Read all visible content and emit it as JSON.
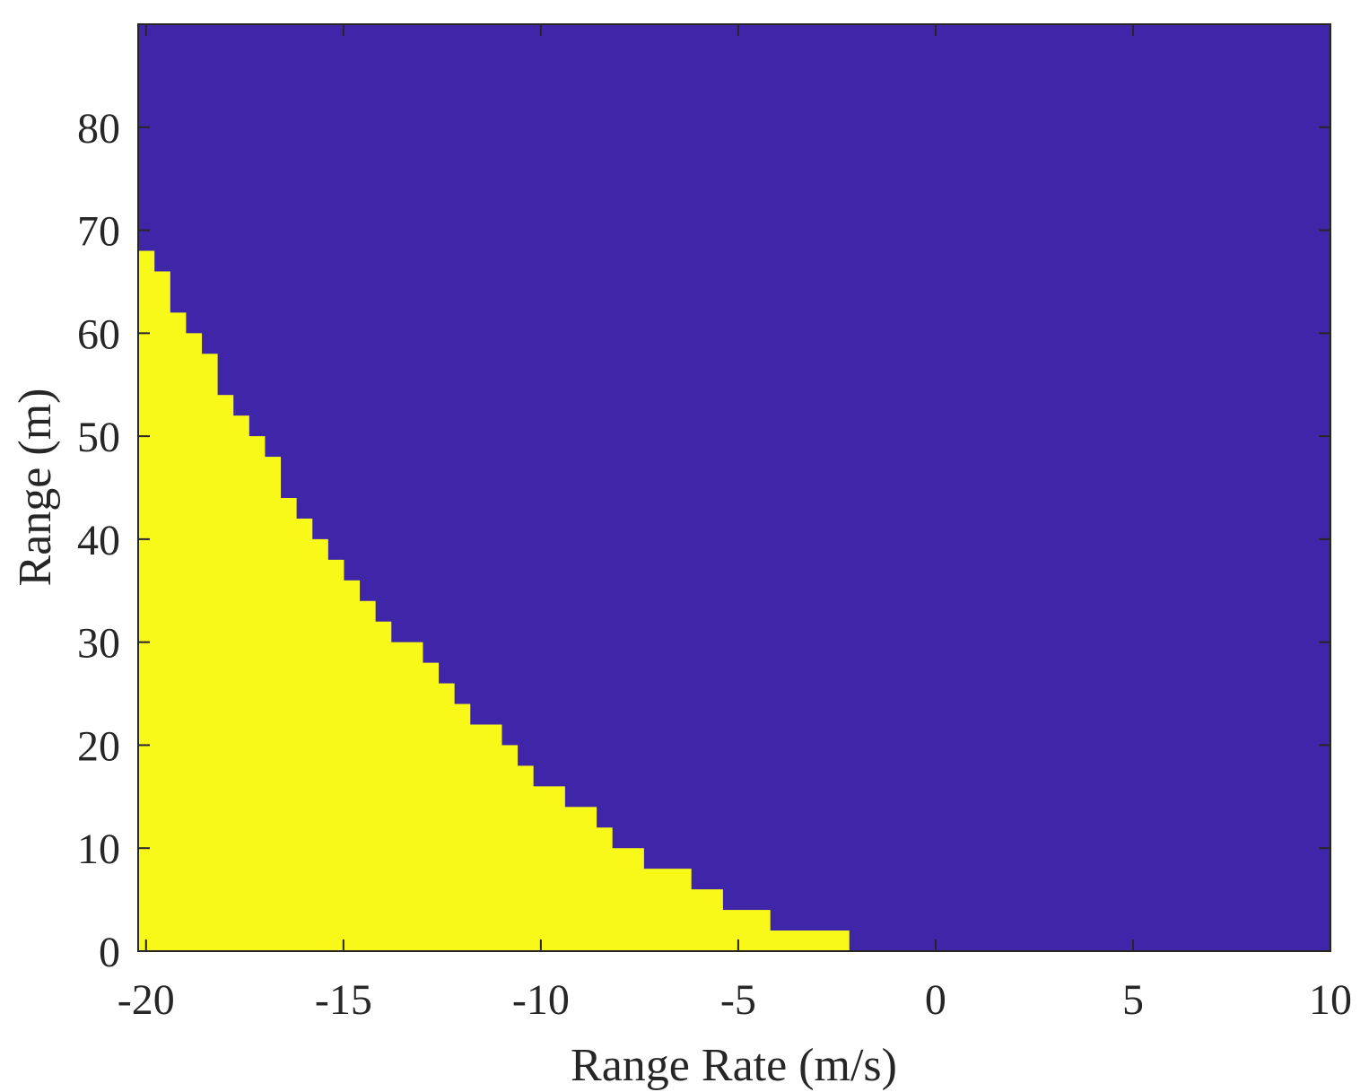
{
  "chart_data": {
    "type": "heatmap",
    "title": "",
    "xlabel": "Range Rate (m/s)",
    "ylabel": "Range (m)",
    "xlim": [
      -20.2,
      10
    ],
    "ylim": [
      0,
      90
    ],
    "grid": false,
    "legend": "none",
    "x_ticks": [
      -20,
      -15,
      -10,
      -5,
      0,
      5,
      10
    ],
    "x_tick_labels": [
      "-20",
      "-15",
      "-10",
      "-5",
      "0",
      "5",
      "10"
    ],
    "y_ticks": [
      0,
      10,
      20,
      30,
      40,
      50,
      60,
      70,
      80
    ],
    "y_tick_labels": [
      "0",
      "10",
      "20",
      "30",
      "40",
      "50",
      "60",
      "70",
      "80"
    ],
    "colors": {
      "background_region": "#3f26a8",
      "highlight_region": "#f8f918",
      "axes": "#262626"
    },
    "boundary": [
      {
        "x_start": -20.2,
        "x_end": -19.8,
        "y": 68
      },
      {
        "x_start": -19.8,
        "x_end": -19.4,
        "y": 66
      },
      {
        "x_start": -19.4,
        "x_end": -19.0,
        "y": 62
      },
      {
        "x_start": -19.0,
        "x_end": -18.6,
        "y": 60
      },
      {
        "x_start": -18.6,
        "x_end": -18.2,
        "y": 58
      },
      {
        "x_start": -18.2,
        "x_end": -17.8,
        "y": 54
      },
      {
        "x_start": -17.8,
        "x_end": -17.4,
        "y": 52
      },
      {
        "x_start": -17.4,
        "x_end": -17.0,
        "y": 50
      },
      {
        "x_start": -17.0,
        "x_end": -16.6,
        "y": 48
      },
      {
        "x_start": -16.6,
        "x_end": -16.2,
        "y": 44
      },
      {
        "x_start": -16.2,
        "x_end": -15.8,
        "y": 42
      },
      {
        "x_start": -15.8,
        "x_end": -15.4,
        "y": 40
      },
      {
        "x_start": -15.4,
        "x_end": -15.0,
        "y": 38
      },
      {
        "x_start": -15.0,
        "x_end": -14.6,
        "y": 36
      },
      {
        "x_start": -14.6,
        "x_end": -14.2,
        "y": 34
      },
      {
        "x_start": -14.2,
        "x_end": -13.8,
        "y": 32
      },
      {
        "x_start": -13.8,
        "x_end": -13.0,
        "y": 30
      },
      {
        "x_start": -13.0,
        "x_end": -12.6,
        "y": 28
      },
      {
        "x_start": -12.6,
        "x_end": -12.2,
        "y": 26
      },
      {
        "x_start": -12.2,
        "x_end": -11.8,
        "y": 24
      },
      {
        "x_start": -11.8,
        "x_end": -11.0,
        "y": 22
      },
      {
        "x_start": -11.0,
        "x_end": -10.6,
        "y": 20
      },
      {
        "x_start": -10.6,
        "x_end": -10.2,
        "y": 18
      },
      {
        "x_start": -10.2,
        "x_end": -9.4,
        "y": 16
      },
      {
        "x_start": -9.4,
        "x_end": -8.6,
        "y": 14
      },
      {
        "x_start": -8.6,
        "x_end": -8.2,
        "y": 12
      },
      {
        "x_start": -8.2,
        "x_end": -7.4,
        "y": 10
      },
      {
        "x_start": -7.4,
        "x_end": -6.2,
        "y": 8
      },
      {
        "x_start": -6.2,
        "x_end": -5.4,
        "y": 6
      },
      {
        "x_start": -5.4,
        "x_end": -4.2,
        "y": 4
      },
      {
        "x_start": -4.2,
        "x_end": -2.2,
        "y": 2
      }
    ]
  }
}
